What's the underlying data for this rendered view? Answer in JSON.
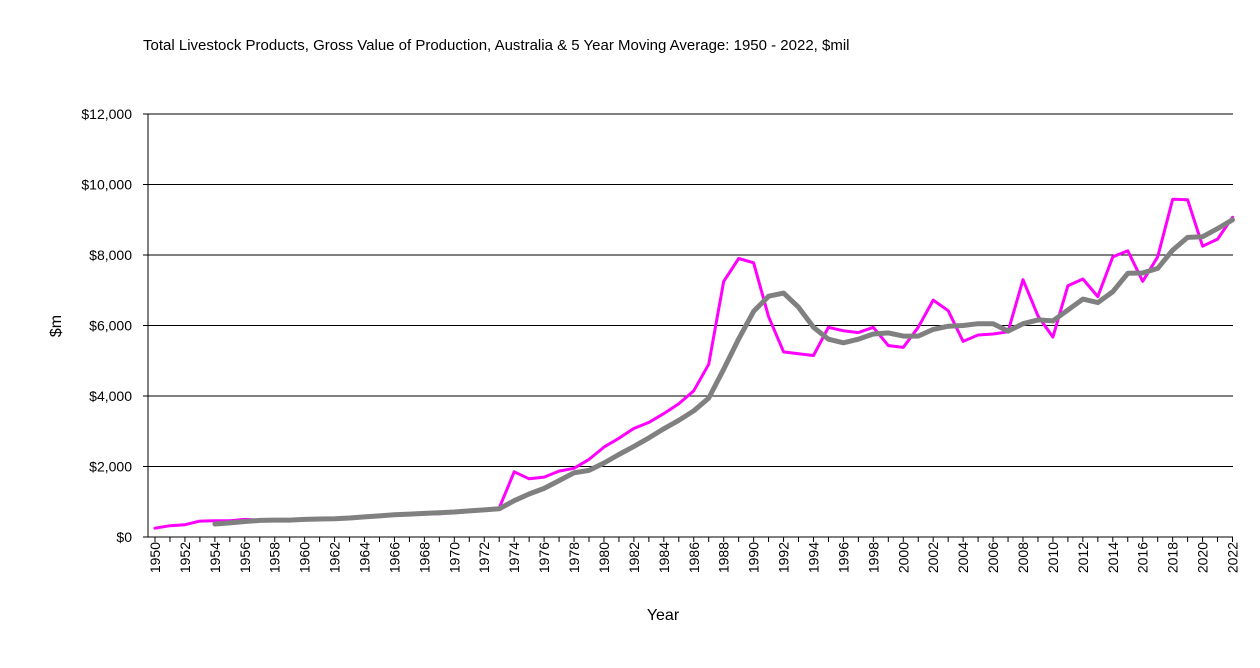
{
  "chart_data": {
    "type": "line",
    "title": "Total Livestock Products, Gross Value of Production,  Australia & 5 Year Moving Average: 1950 - 2022, $mil",
    "xlabel": "Year",
    "ylabel": "$m",
    "ylim": [
      0,
      12000
    ],
    "y_ticks": [
      0,
      2000,
      4000,
      6000,
      8000,
      10000,
      12000
    ],
    "y_tick_labels": [
      "$0",
      "$2,000",
      "$4,000",
      "$6,000",
      "$8,000",
      "$10,000",
      "$12,000"
    ],
    "x": [
      1950,
      1951,
      1952,
      1953,
      1954,
      1955,
      1956,
      1957,
      1958,
      1959,
      1960,
      1961,
      1962,
      1963,
      1964,
      1965,
      1966,
      1967,
      1968,
      1969,
      1970,
      1971,
      1972,
      1973,
      1974,
      1975,
      1976,
      1977,
      1978,
      1979,
      1980,
      1981,
      1982,
      1983,
      1984,
      1985,
      1986,
      1987,
      1988,
      1989,
      1990,
      1991,
      1992,
      1993,
      1994,
      1995,
      1996,
      1997,
      1998,
      1999,
      2000,
      2001,
      2002,
      2003,
      2004,
      2005,
      2006,
      2007,
      2008,
      2009,
      2010,
      2011,
      2012,
      2013,
      2014,
      2015,
      2016,
      2017,
      2018,
      2019,
      2020,
      2021,
      2022
    ],
    "x_tick_labels": [
      "1950",
      "1952",
      "1954",
      "1956",
      "1958",
      "1960",
      "1962",
      "1964",
      "1966",
      "1968",
      "1970",
      "1972",
      "1974",
      "1976",
      "1978",
      "1980",
      "1982",
      "1984",
      "1986",
      "1988",
      "1990",
      "1992",
      "1994",
      "1996",
      "1998",
      "2000",
      "2002",
      "2004",
      "2006",
      "2008",
      "2010",
      "2012",
      "2014",
      "2016",
      "2018",
      "2020",
      "2022"
    ],
    "grid": "horizontal",
    "series": [
      {
        "name": "Gross Value of Production",
        "color": "#ff00ff",
        "values": [
          250,
          320,
          350,
          450,
          460,
          460,
          500,
          480,
          480,
          480,
          510,
          510,
          520,
          540,
          580,
          620,
          630,
          640,
          650,
          660,
          700,
          740,
          790,
          820,
          1850,
          1650,
          1700,
          1870,
          1950,
          2200,
          2550,
          2800,
          3080,
          3250,
          3500,
          3780,
          4150,
          4900,
          7250,
          7900,
          7780,
          6250,
          5250,
          5200,
          5150,
          5950,
          5850,
          5800,
          5950,
          5430,
          5380,
          5950,
          6720,
          6420,
          5550,
          5730,
          5760,
          5820,
          7300,
          6270,
          5670,
          7130,
          7320,
          6820,
          7950,
          8120,
          7250,
          7950,
          9580,
          9570,
          8250,
          8450,
          9070
        ]
      },
      {
        "name": "5 Year Moving Average",
        "color": "#808080",
        "values": [
          null,
          null,
          null,
          null,
          370,
          400,
          440,
          470,
          480,
          480,
          500,
          510,
          520,
          540,
          570,
          600,
          630,
          650,
          670,
          690,
          710,
          740,
          770,
          800,
          1030,
          1220,
          1380,
          1600,
          1820,
          1890,
          2100,
          2340,
          2570,
          2810,
          3070,
          3310,
          3580,
          3940,
          4760,
          5620,
          6400,
          6830,
          6920,
          6520,
          5950,
          5610,
          5510,
          5610,
          5760,
          5790,
          5700,
          5700,
          5890,
          5980,
          6000,
          6050,
          6050,
          5840,
          6050,
          6160,
          6130,
          6440,
          6750,
          6650,
          6960,
          7480,
          7490,
          7620,
          8140,
          8500,
          8520,
          8750,
          9000
        ]
      }
    ]
  }
}
